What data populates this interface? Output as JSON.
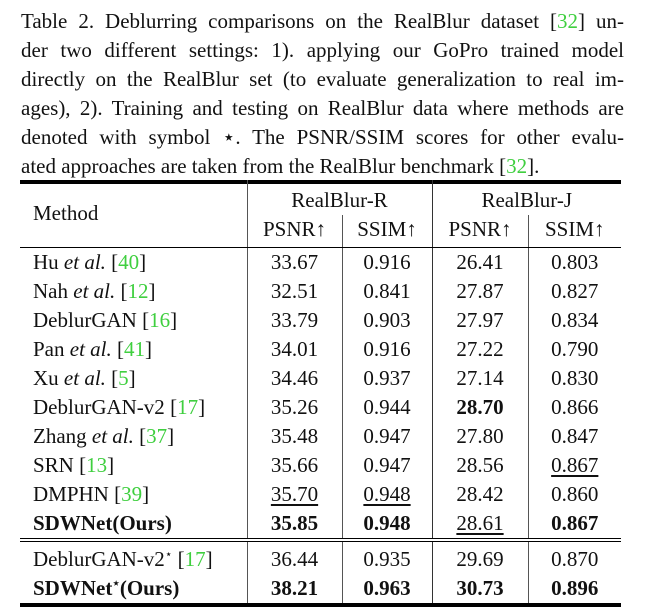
{
  "caption": {
    "lines": [
      [
        {
          "t": "Table 2. Deblurring comparisons on the RealBlur dataset ["
        },
        {
          "t": "32",
          "ref": true
        },
        {
          "t": "] un-"
        }
      ],
      [
        {
          "t": "der two different settings: 1). applying our GoPro trained model"
        }
      ],
      [
        {
          "t": "directly on the RealBlur set (to evaluate generalization to real im-"
        }
      ],
      [
        {
          "t": "ages), 2). Training and testing on RealBlur data where methods are"
        }
      ],
      [
        {
          "t": "denoted with symbol ⋆. The PSNR/SSIM scores for other evalu-"
        }
      ],
      [
        {
          "t": "ated approaches are taken from the RealBlur benchmark ["
        },
        {
          "t": "32",
          "ref": true
        },
        {
          "t": "]."
        }
      ]
    ]
  },
  "table": {
    "method_header": "Method",
    "groups": [
      "RealBlur-R",
      "RealBlur-J"
    ],
    "metrics": [
      "PSNR↑",
      "SSIM↑",
      "PSNR↑",
      "SSIM↑"
    ],
    "rows": [
      {
        "name": "Hu ",
        "etal": true,
        "ref": "40",
        "vals": [
          [
            "33.67",
            ""
          ],
          [
            "0.916",
            ""
          ],
          [
            "26.41",
            ""
          ],
          [
            "0.803",
            ""
          ]
        ]
      },
      {
        "name": "Nah ",
        "etal": true,
        "ref": "12",
        "vals": [
          [
            "32.51",
            ""
          ],
          [
            "0.841",
            ""
          ],
          [
            "27.87",
            ""
          ],
          [
            "0.827",
            ""
          ]
        ]
      },
      {
        "name": "DeblurGAN ",
        "ref": "16",
        "vals": [
          [
            "33.79",
            ""
          ],
          [
            "0.903",
            ""
          ],
          [
            "27.97",
            ""
          ],
          [
            "0.834",
            ""
          ]
        ]
      },
      {
        "name": "Pan ",
        "etal": true,
        "ref": "41",
        "vals": [
          [
            "34.01",
            ""
          ],
          [
            "0.916",
            ""
          ],
          [
            "27.22",
            ""
          ],
          [
            "0.790",
            ""
          ]
        ]
      },
      {
        "name": "Xu ",
        "etal": true,
        "ref": "5",
        "vals": [
          [
            "34.46",
            ""
          ],
          [
            "0.937",
            ""
          ],
          [
            "27.14",
            ""
          ],
          [
            "0.830",
            ""
          ]
        ]
      },
      {
        "name": "DeblurGAN-v2 ",
        "ref": "17",
        "vals": [
          [
            "35.26",
            ""
          ],
          [
            "0.944",
            ""
          ],
          [
            "28.70",
            "b"
          ],
          [
            "0.866",
            ""
          ]
        ]
      },
      {
        "name": "Zhang ",
        "etal": true,
        "ref": "37",
        "vals": [
          [
            "35.48",
            ""
          ],
          [
            "0.947",
            ""
          ],
          [
            "27.80",
            ""
          ],
          [
            "0.847",
            ""
          ]
        ]
      },
      {
        "name": "SRN ",
        "ref": "13",
        "vals": [
          [
            "35.66",
            ""
          ],
          [
            "0.947",
            ""
          ],
          [
            "28.56",
            ""
          ],
          [
            "0.867",
            "u"
          ]
        ]
      },
      {
        "name": "DMPHN ",
        "ref": "39",
        "vals": [
          [
            "35.70",
            "u"
          ],
          [
            "0.948",
            "u"
          ],
          [
            "28.42",
            ""
          ],
          [
            "0.860",
            ""
          ]
        ]
      },
      {
        "name": "SDWNet(Ours)",
        "bold": true,
        "sep": true,
        "vals": [
          [
            "35.85",
            "b"
          ],
          [
            "0.948",
            "b"
          ],
          [
            "28.61",
            "u"
          ],
          [
            "0.867",
            "b"
          ]
        ]
      },
      {
        "name": "DeblurGAN-v2",
        "star": "⋆",
        "after": " ",
        "ref": "17",
        "vals": [
          [
            "36.44",
            ""
          ],
          [
            "0.935",
            ""
          ],
          [
            "29.69",
            ""
          ],
          [
            "0.870",
            ""
          ]
        ]
      },
      {
        "name": "SDWNet",
        "star": "⋆",
        "after": "(Ours)",
        "bold": true,
        "vals": [
          [
            "38.21",
            "b"
          ],
          [
            "0.963",
            "b"
          ],
          [
            "30.73",
            "b"
          ],
          [
            "0.896",
            "b"
          ]
        ]
      }
    ],
    "etal_text": "et al.",
    "colors": {
      "ref": "#3fcf3f"
    }
  }
}
